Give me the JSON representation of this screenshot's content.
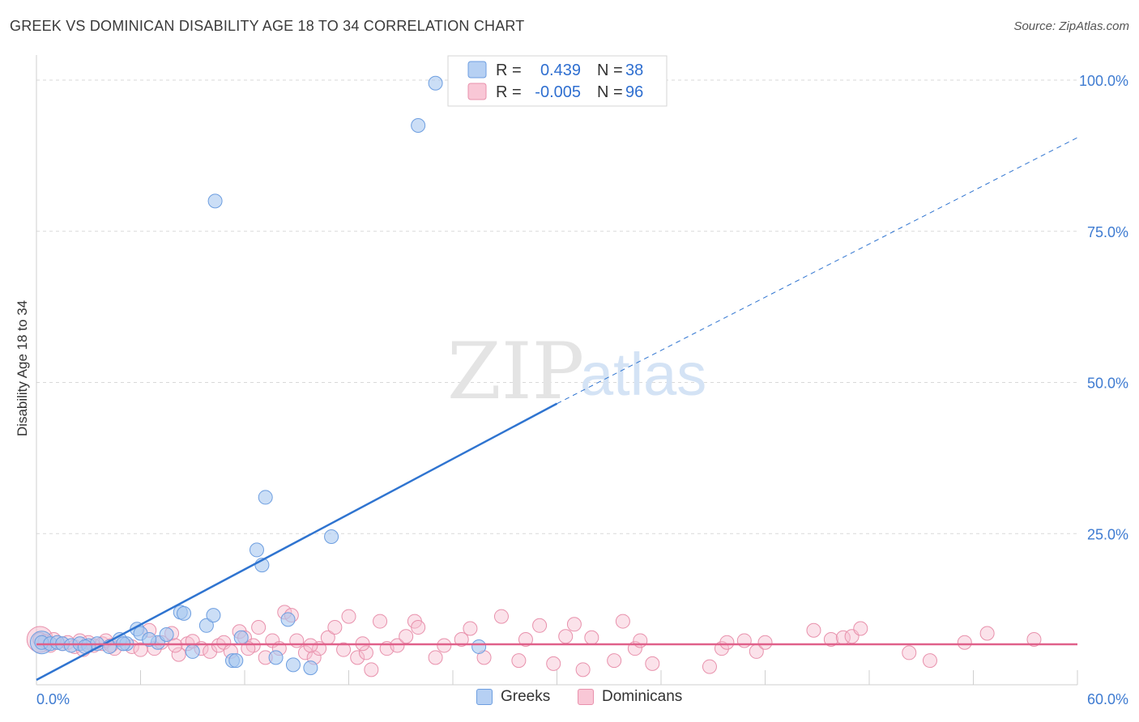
{
  "title": "GREEK VS DOMINICAN DISABILITY AGE 18 TO 34 CORRELATION CHART",
  "source": "Source: ZipAtlas.com",
  "watermark": {
    "zip": "ZIP",
    "atlas": "atlas"
  },
  "colors": {
    "greeks_fill": "#a9c8f0",
    "greeks_stroke": "#6d9ee0",
    "greeks_line": "#2f74d0",
    "dominicans_fill": "#f6bfd0",
    "dominicans_stroke": "#e891ac",
    "dominicans_line": "#e0608a",
    "tick_text": "#3e7bd1",
    "grid": "#d9d9d9"
  },
  "legend": {
    "r_label": "R =",
    "n_label": "N =",
    "greeks": {
      "r": "0.439",
      "n": "38"
    },
    "dominicans": {
      "r": "-0.005",
      "n": "96"
    }
  },
  "bottom_legend": {
    "greeks": "Greeks",
    "dominicans": "Dominicans"
  },
  "chart_data": {
    "type": "scatter",
    "title": "GREEK VS DOMINICAN DISABILITY AGE 18 TO 34 CORRELATION CHART",
    "xlabel": "",
    "ylabel": "Disability Age 18 to 34",
    "xlim": [
      0,
      60
    ],
    "ylim": [
      0,
      100
    ],
    "x_tick_labels": [
      "0.0%",
      "60.0%"
    ],
    "y_ticks": [
      25,
      50,
      75,
      100
    ],
    "y_tick_labels": [
      "25.0%",
      "50.0%",
      "75.0%",
      "100.0%"
    ],
    "grid": true,
    "legend_position": "top-center",
    "series": [
      {
        "name": "Greeks",
        "r": 0.439,
        "n": 38,
        "trend": {
          "x": [
            0,
            30
          ],
          "y": [
            0.8,
            46.5
          ],
          "dashed_to": [
            60,
            90.5
          ]
        },
        "points": [
          [
            0.3,
            7.0
          ],
          [
            0.8,
            6.8
          ],
          [
            1.2,
            7.0
          ],
          [
            1.5,
            6.8
          ],
          [
            2.0,
            6.5
          ],
          [
            2.5,
            6.8
          ],
          [
            3.0,
            6.5
          ],
          [
            3.5,
            6.8
          ],
          [
            4.2,
            6.3
          ],
          [
            4.8,
            7.5
          ],
          [
            5.2,
            6.8
          ],
          [
            5.8,
            9.2
          ],
          [
            6.0,
            8.5
          ],
          [
            7.0,
            7.0
          ],
          [
            7.5,
            8.3
          ],
          [
            8.3,
            12.0
          ],
          [
            8.5,
            11.8
          ],
          [
            9.0,
            5.5
          ],
          [
            9.8,
            9.8
          ],
          [
            10.2,
            11.5
          ],
          [
            11.3,
            4.0
          ],
          [
            11.5,
            4.0
          ],
          [
            11.8,
            7.8
          ],
          [
            12.7,
            22.3
          ],
          [
            13.0,
            19.8
          ],
          [
            13.2,
            31.0
          ],
          [
            13.8,
            4.5
          ],
          [
            14.5,
            10.8
          ],
          [
            14.8,
            3.3
          ],
          [
            15.8,
            2.8
          ],
          [
            17.0,
            24.5
          ],
          [
            10.3,
            80.0
          ],
          [
            22.0,
            92.5
          ],
          [
            23.0,
            99.5
          ],
          [
            25.5,
            6.3
          ],
          [
            2.8,
            6.3
          ],
          [
            6.5,
            7.5
          ],
          [
            5.0,
            6.8
          ]
        ]
      },
      {
        "name": "Dominicans",
        "r": -0.005,
        "n": 96,
        "trend": {
          "x": [
            0,
            60
          ],
          "y": [
            6.7,
            6.7
          ]
        },
        "points": [
          [
            0.2,
            7.5
          ],
          [
            0.5,
            7.2
          ],
          [
            0.8,
            6.5
          ],
          [
            1.2,
            7.0
          ],
          [
            1.5,
            6.8
          ],
          [
            1.8,
            7.0
          ],
          [
            2.2,
            6.3
          ],
          [
            2.7,
            5.8
          ],
          [
            3.0,
            7.0
          ],
          [
            3.3,
            6.5
          ],
          [
            3.8,
            6.8
          ],
          [
            4.0,
            7.3
          ],
          [
            4.5,
            6.0
          ],
          [
            5.0,
            6.8
          ],
          [
            5.5,
            6.3
          ],
          [
            6.0,
            5.8
          ],
          [
            6.5,
            9.0
          ],
          [
            6.8,
            6.0
          ],
          [
            7.2,
            7.0
          ],
          [
            7.8,
            8.5
          ],
          [
            8.2,
            5.0
          ],
          [
            8.7,
            6.8
          ],
          [
            9.0,
            7.2
          ],
          [
            9.5,
            6.0
          ],
          [
            10.0,
            5.5
          ],
          [
            10.5,
            6.5
          ],
          [
            10.8,
            7.0
          ],
          [
            11.2,
            5.5
          ],
          [
            11.7,
            8.8
          ],
          [
            12.0,
            7.8
          ],
          [
            12.5,
            6.5
          ],
          [
            12.8,
            9.5
          ],
          [
            13.2,
            4.5
          ],
          [
            13.6,
            7.3
          ],
          [
            14.0,
            6.0
          ],
          [
            14.3,
            12.0
          ],
          [
            14.7,
            11.5
          ],
          [
            15.0,
            7.3
          ],
          [
            15.5,
            5.3
          ],
          [
            16.0,
            4.5
          ],
          [
            16.3,
            6.0
          ],
          [
            16.8,
            7.8
          ],
          [
            17.2,
            9.5
          ],
          [
            17.7,
            5.8
          ],
          [
            18.0,
            11.3
          ],
          [
            18.5,
            4.5
          ],
          [
            19.0,
            5.3
          ],
          [
            19.3,
            2.5
          ],
          [
            19.8,
            10.5
          ],
          [
            20.2,
            6.0
          ],
          [
            20.8,
            6.5
          ],
          [
            21.3,
            8.0
          ],
          [
            21.8,
            10.5
          ],
          [
            22.0,
            9.5
          ],
          [
            23.0,
            4.5
          ],
          [
            23.5,
            6.5
          ],
          [
            24.5,
            7.5
          ],
          [
            25.0,
            9.3
          ],
          [
            25.8,
            4.5
          ],
          [
            26.8,
            11.3
          ],
          [
            27.8,
            4.0
          ],
          [
            28.2,
            7.5
          ],
          [
            29.0,
            9.8
          ],
          [
            29.8,
            3.5
          ],
          [
            30.5,
            8.0
          ],
          [
            31.0,
            10.0
          ],
          [
            31.5,
            2.5
          ],
          [
            32.0,
            7.8
          ],
          [
            33.3,
            4.0
          ],
          [
            33.8,
            10.5
          ],
          [
            34.5,
            6.0
          ],
          [
            34.8,
            7.3
          ],
          [
            35.5,
            3.5
          ],
          [
            38.8,
            3.0
          ],
          [
            39.5,
            6.0
          ],
          [
            39.8,
            7.0
          ],
          [
            40.8,
            7.3
          ],
          [
            41.5,
            5.5
          ],
          [
            42.0,
            7.0
          ],
          [
            44.8,
            9.0
          ],
          [
            45.8,
            7.5
          ],
          [
            46.5,
            7.8
          ],
          [
            47.0,
            8.0
          ],
          [
            47.5,
            9.3
          ],
          [
            50.3,
            5.3
          ],
          [
            51.5,
            4.0
          ],
          [
            53.5,
            7.0
          ],
          [
            54.8,
            8.5
          ],
          [
            57.5,
            7.5
          ],
          [
            1.0,
            7.5
          ],
          [
            2.5,
            7.3
          ],
          [
            4.3,
            6.5
          ],
          [
            8.0,
            6.5
          ],
          [
            12.2,
            6.0
          ],
          [
            15.8,
            6.5
          ],
          [
            18.8,
            6.8
          ]
        ]
      }
    ]
  }
}
